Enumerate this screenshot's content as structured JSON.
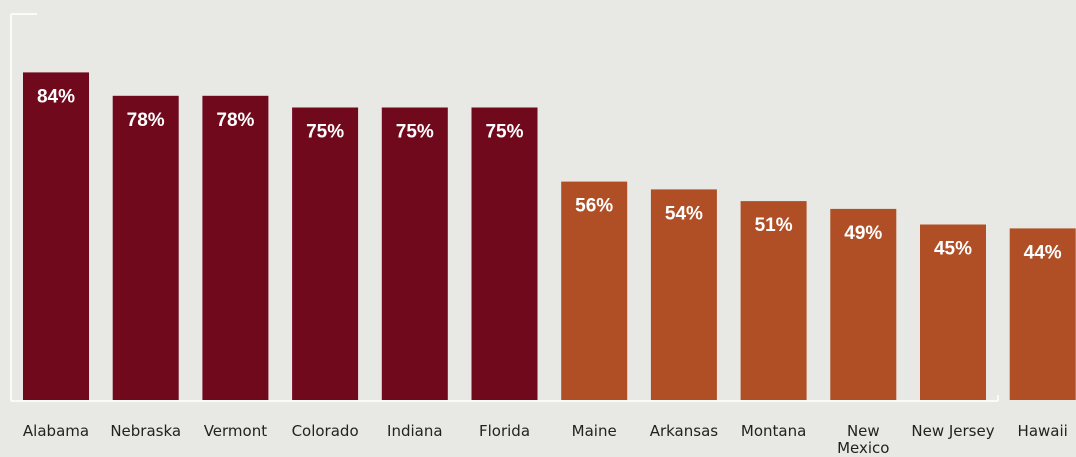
{
  "chart_data": {
    "type": "bar",
    "title": "",
    "xlabel": "",
    "ylabel": "",
    "ylim": [
      0,
      100
    ],
    "grid": false,
    "legend": "none",
    "categories": [
      "Alabama",
      "Nebraska",
      "Vermont",
      "Colorado",
      "Indiana",
      "Florida",
      "Maine",
      "Arkansas",
      "Montana",
      "New Mexico",
      "New Jersey",
      "Hawaii"
    ],
    "values": [
      84,
      78,
      78,
      75,
      75,
      75,
      56,
      54,
      51,
      49,
      45,
      44
    ],
    "value_labels": [
      "84%",
      "78%",
      "78%",
      "75%",
      "75%",
      "75%",
      "56%",
      "54%",
      "51%",
      "49%",
      "45%",
      "44%"
    ],
    "colors": [
      "#70091c",
      "#70091c",
      "#70091c",
      "#70091c",
      "#70091c",
      "#70091c",
      "#b04f25",
      "#b04f25",
      "#b04f25",
      "#b04f25",
      "#b04f25",
      "#b04f25"
    ]
  },
  "colors": {
    "background": "#e8e9e4",
    "axis": "#ffffff",
    "value_text": "#ffffff",
    "label_text": "#222222"
  }
}
